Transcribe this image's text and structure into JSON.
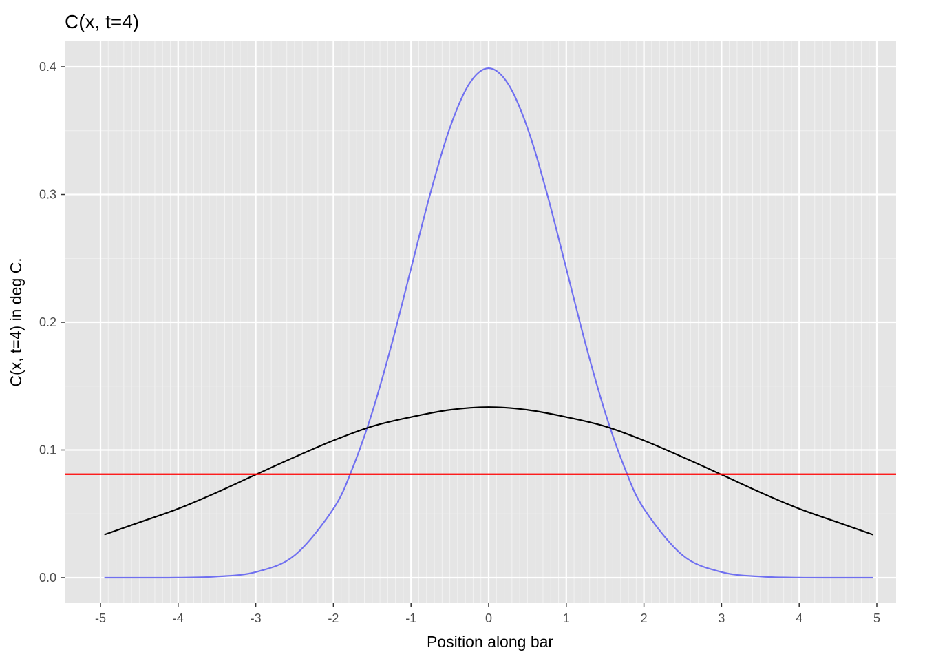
{
  "chart_data": {
    "type": "line",
    "title": "C(x, t=4)",
    "xlabel": "Position along bar",
    "ylabel": "C(x, t=4) in deg C.",
    "xlim": [
      -5.0,
      5.0
    ],
    "ylim": [
      0.0,
      0.4
    ],
    "x_ticks": [
      -5,
      -4,
      -3,
      -2,
      -1,
      0,
      1,
      2,
      3,
      4,
      5
    ],
    "x_tick_labels": [
      "-5",
      "-4",
      "-3",
      "-2",
      "-1",
      "0",
      "1",
      "2",
      "3",
      "4",
      "5"
    ],
    "y_ticks": [
      0.0,
      0.1,
      0.2,
      0.3,
      0.4
    ],
    "y_tick_labels": [
      "0.0",
      "0.1",
      "0.2",
      "0.3",
      "0.4"
    ],
    "x_minor_step": 0.1,
    "grid": true,
    "legend": "none",
    "series": [
      {
        "color": "#7070f0",
        "x": [
          -4.95,
          -4.5,
          -4.0,
          -3.5,
          -3.0,
          -2.5,
          -2.0,
          -1.75,
          -1.5,
          -1.25,
          -1.0,
          -0.75,
          -0.5,
          -0.25,
          0.0,
          0.25,
          0.5,
          0.75,
          1.0,
          1.25,
          1.5,
          1.75,
          2.0,
          2.5,
          3.0,
          3.5,
          4.0,
          4.5,
          4.95
        ],
        "y": [
          0.0,
          0.0,
          0.0001,
          0.0009,
          0.0044,
          0.0175,
          0.054,
          0.0863,
          0.1295,
          0.1826,
          0.242,
          0.3011,
          0.3521,
          0.3867,
          0.3989,
          0.3867,
          0.3521,
          0.3011,
          0.242,
          0.1826,
          0.1295,
          0.0863,
          0.054,
          0.0175,
          0.0044,
          0.0009,
          0.0001,
          0.0,
          0.0
        ]
      },
      {
        "color": "#000000",
        "x": [
          -4.95,
          -4.5,
          -4.0,
          -3.5,
          -3.0,
          -2.5,
          -2.0,
          -1.5,
          -1.0,
          -0.5,
          0.0,
          0.5,
          1.0,
          1.5,
          2.0,
          2.5,
          3.0,
          3.5,
          4.0,
          4.5,
          4.95
        ],
        "y": [
          0.0337,
          0.0433,
          0.054,
          0.0668,
          0.0807,
          0.0944,
          0.1074,
          0.1185,
          0.1258,
          0.1314,
          0.1336,
          0.1314,
          0.1258,
          0.1185,
          0.1074,
          0.0944,
          0.0807,
          0.0668,
          0.054,
          0.0433,
          0.0337
        ]
      }
    ],
    "hlines": [
      {
        "y": 0.081,
        "color": "#ff0000"
      }
    ]
  }
}
